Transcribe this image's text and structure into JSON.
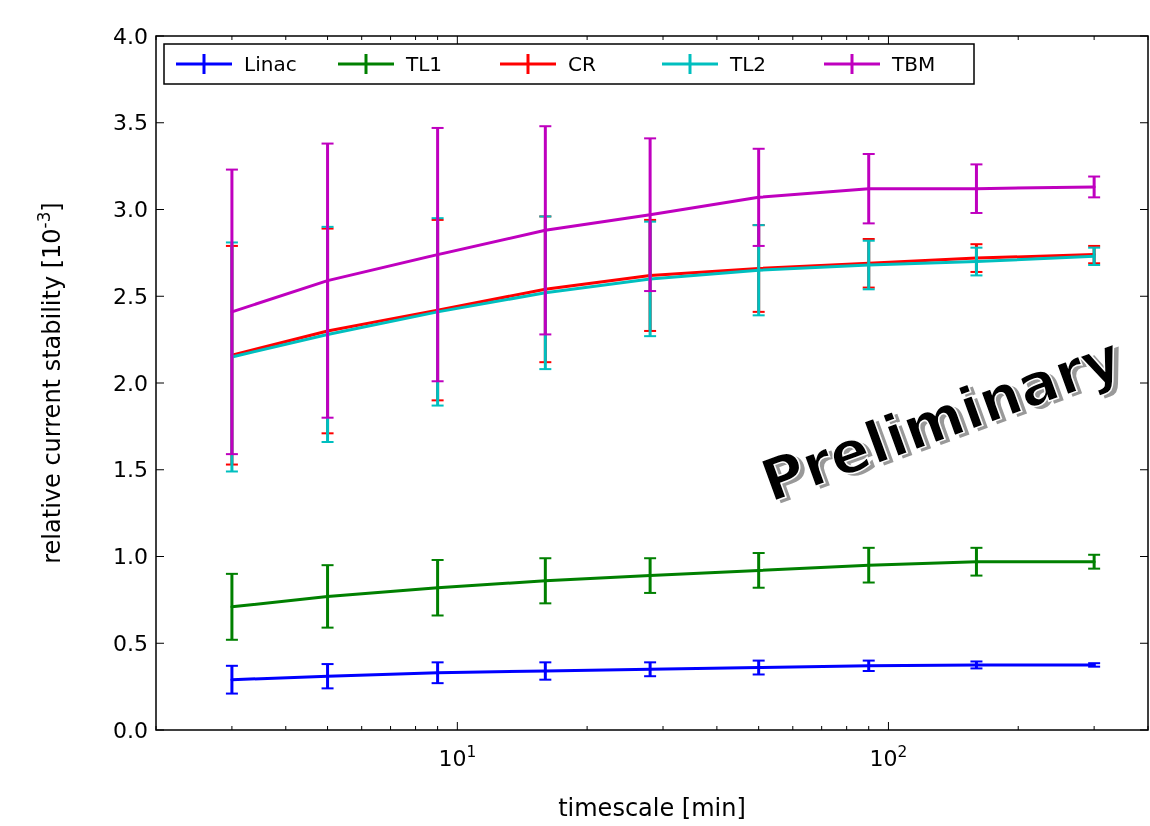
{
  "chart_data": {
    "type": "line",
    "xlabel": "timescale [min]",
    "ylabel": "relative current stability [10$^{-3}$]",
    "x": [
      3,
      5,
      9,
      16,
      28,
      50,
      90,
      160,
      300
    ],
    "series": [
      {
        "name": "Linac",
        "color": "#0000ff",
        "values": [
          0.29,
          0.31,
          0.33,
          0.34,
          0.35,
          0.36,
          0.37,
          0.375,
          0.375
        ],
        "errors": [
          0.08,
          0.07,
          0.06,
          0.05,
          0.04,
          0.04,
          0.03,
          0.02,
          0.01
        ]
      },
      {
        "name": "TL1",
        "color": "#008000",
        "values": [
          0.71,
          0.77,
          0.82,
          0.86,
          0.89,
          0.92,
          0.95,
          0.97,
          0.97
        ],
        "errors": [
          0.19,
          0.18,
          0.16,
          0.13,
          0.1,
          0.1,
          0.1,
          0.08,
          0.04
        ]
      },
      {
        "name": "CR",
        "color": "#ff0000",
        "values": [
          2.16,
          2.3,
          2.42,
          2.54,
          2.62,
          2.66,
          2.69,
          2.72,
          2.74
        ],
        "errors": [
          0.63,
          0.59,
          0.52,
          0.42,
          0.32,
          0.25,
          0.14,
          0.08,
          0.05
        ]
      },
      {
        "name": "TL2",
        "color": "#00bfbf",
        "values": [
          2.15,
          2.28,
          2.41,
          2.52,
          2.6,
          2.65,
          2.68,
          2.7,
          2.73
        ],
        "errors": [
          0.66,
          0.62,
          0.54,
          0.44,
          0.33,
          0.26,
          0.14,
          0.08,
          0.05
        ]
      },
      {
        "name": "TBM",
        "color": "#bf00bf",
        "values": [
          2.41,
          2.59,
          2.74,
          2.88,
          2.97,
          3.07,
          3.12,
          3.12,
          3.13
        ],
        "errors": [
          0.82,
          0.79,
          0.73,
          0.6,
          0.44,
          0.28,
          0.2,
          0.14,
          0.06
        ]
      }
    ],
    "log": "x",
    "xlim": [
      2,
      400
    ],
    "xticks": [
      {
        "value": 2,
        "label": null
      },
      {
        "value": 3,
        "label": null
      },
      {
        "value": 4,
        "label": null
      },
      {
        "value": 5,
        "label": null
      },
      {
        "value": 6,
        "label": null
      },
      {
        "value": 7,
        "label": null
      },
      {
        "value": 8,
        "label": null
      },
      {
        "value": 9,
        "label": null
      },
      {
        "value": 10,
        "label": "10$^{1}$"
      },
      {
        "value": 20,
        "label": null
      },
      {
        "value": 30,
        "label": null
      },
      {
        "value": 40,
        "label": null
      },
      {
        "value": 50,
        "label": null
      },
      {
        "value": 60,
        "label": null
      },
      {
        "value": 70,
        "label": null
      },
      {
        "value": 80,
        "label": null
      },
      {
        "value": 90,
        "label": null
      },
      {
        "value": 100,
        "label": "10$^{2}$"
      },
      {
        "value": 200,
        "label": null
      },
      {
        "value": 300,
        "label": null
      },
      {
        "value": 400,
        "label": null
      }
    ],
    "ylim": [
      0,
      4
    ],
    "yticks": [
      {
        "value": 0,
        "label": "0.0"
      },
      {
        "value": 0.5,
        "label": "0.5"
      },
      {
        "value": 1,
        "label": "1.0"
      },
      {
        "value": 1.5,
        "label": "1.5"
      },
      {
        "value": 2,
        "label": "2.0"
      },
      {
        "value": 2.5,
        "label": "2.5"
      },
      {
        "value": 3,
        "label": "3.0"
      },
      {
        "value": 3.5,
        "label": "3.5"
      },
      {
        "value": 4,
        "label": "4.0"
      }
    ],
    "grid": false,
    "legend": "top left",
    "marker": "none",
    "line_style": "solid",
    "annotations": [
      "Preliminary"
    ]
  }
}
